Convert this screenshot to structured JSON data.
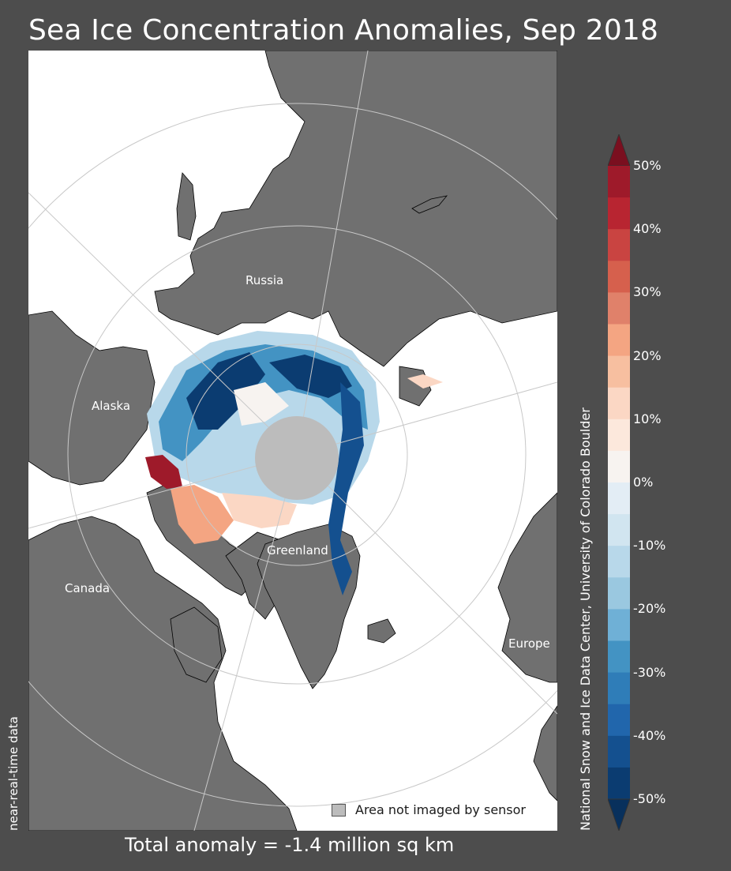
{
  "title": "Sea Ice Concentration Anomalies, Sep 2018",
  "place_labels": {
    "russia": "Russia",
    "alaska": "Alaska",
    "canada": "Canada",
    "greenland": "Greenland",
    "europe": "Europe"
  },
  "legend": {
    "not_imaged_label": "Area not imaged by sensor",
    "not_imaged_color": "#bcbcbc"
  },
  "side_note": "near-real-time data",
  "credit": "National Snow and Ice Data Center, University of Colorado Boulder",
  "total_anomaly": "Total anomaly = -1.4 million sq km",
  "colors": {
    "background": "#4d4d4d",
    "land": "#707070",
    "ocean": "#ffffff",
    "pole_hole": "#bcbcbc"
  },
  "colorbar": {
    "min": -50,
    "max": 50,
    "step": 5,
    "tick_labels": [
      "50%",
      "40%",
      "30%",
      "20%",
      "10%",
      "0%",
      "-10%",
      "-20%",
      "-30%",
      "-40%",
      "-50%"
    ],
    "bin_colors": [
      "#9e1a2a",
      "#b82531",
      "#c94441",
      "#d6604d",
      "#e0816a",
      "#f4a582",
      "#f7bfa0",
      "#fbd7c4",
      "#fce8dc",
      "#f7f3f0",
      "#e3edf5",
      "#d1e5f0",
      "#b8d8ea",
      "#9ac8e0",
      "#6fb0d6",
      "#4393c3",
      "#2f7db8",
      "#2166ac",
      "#14508f",
      "#0b3c71"
    ]
  }
}
